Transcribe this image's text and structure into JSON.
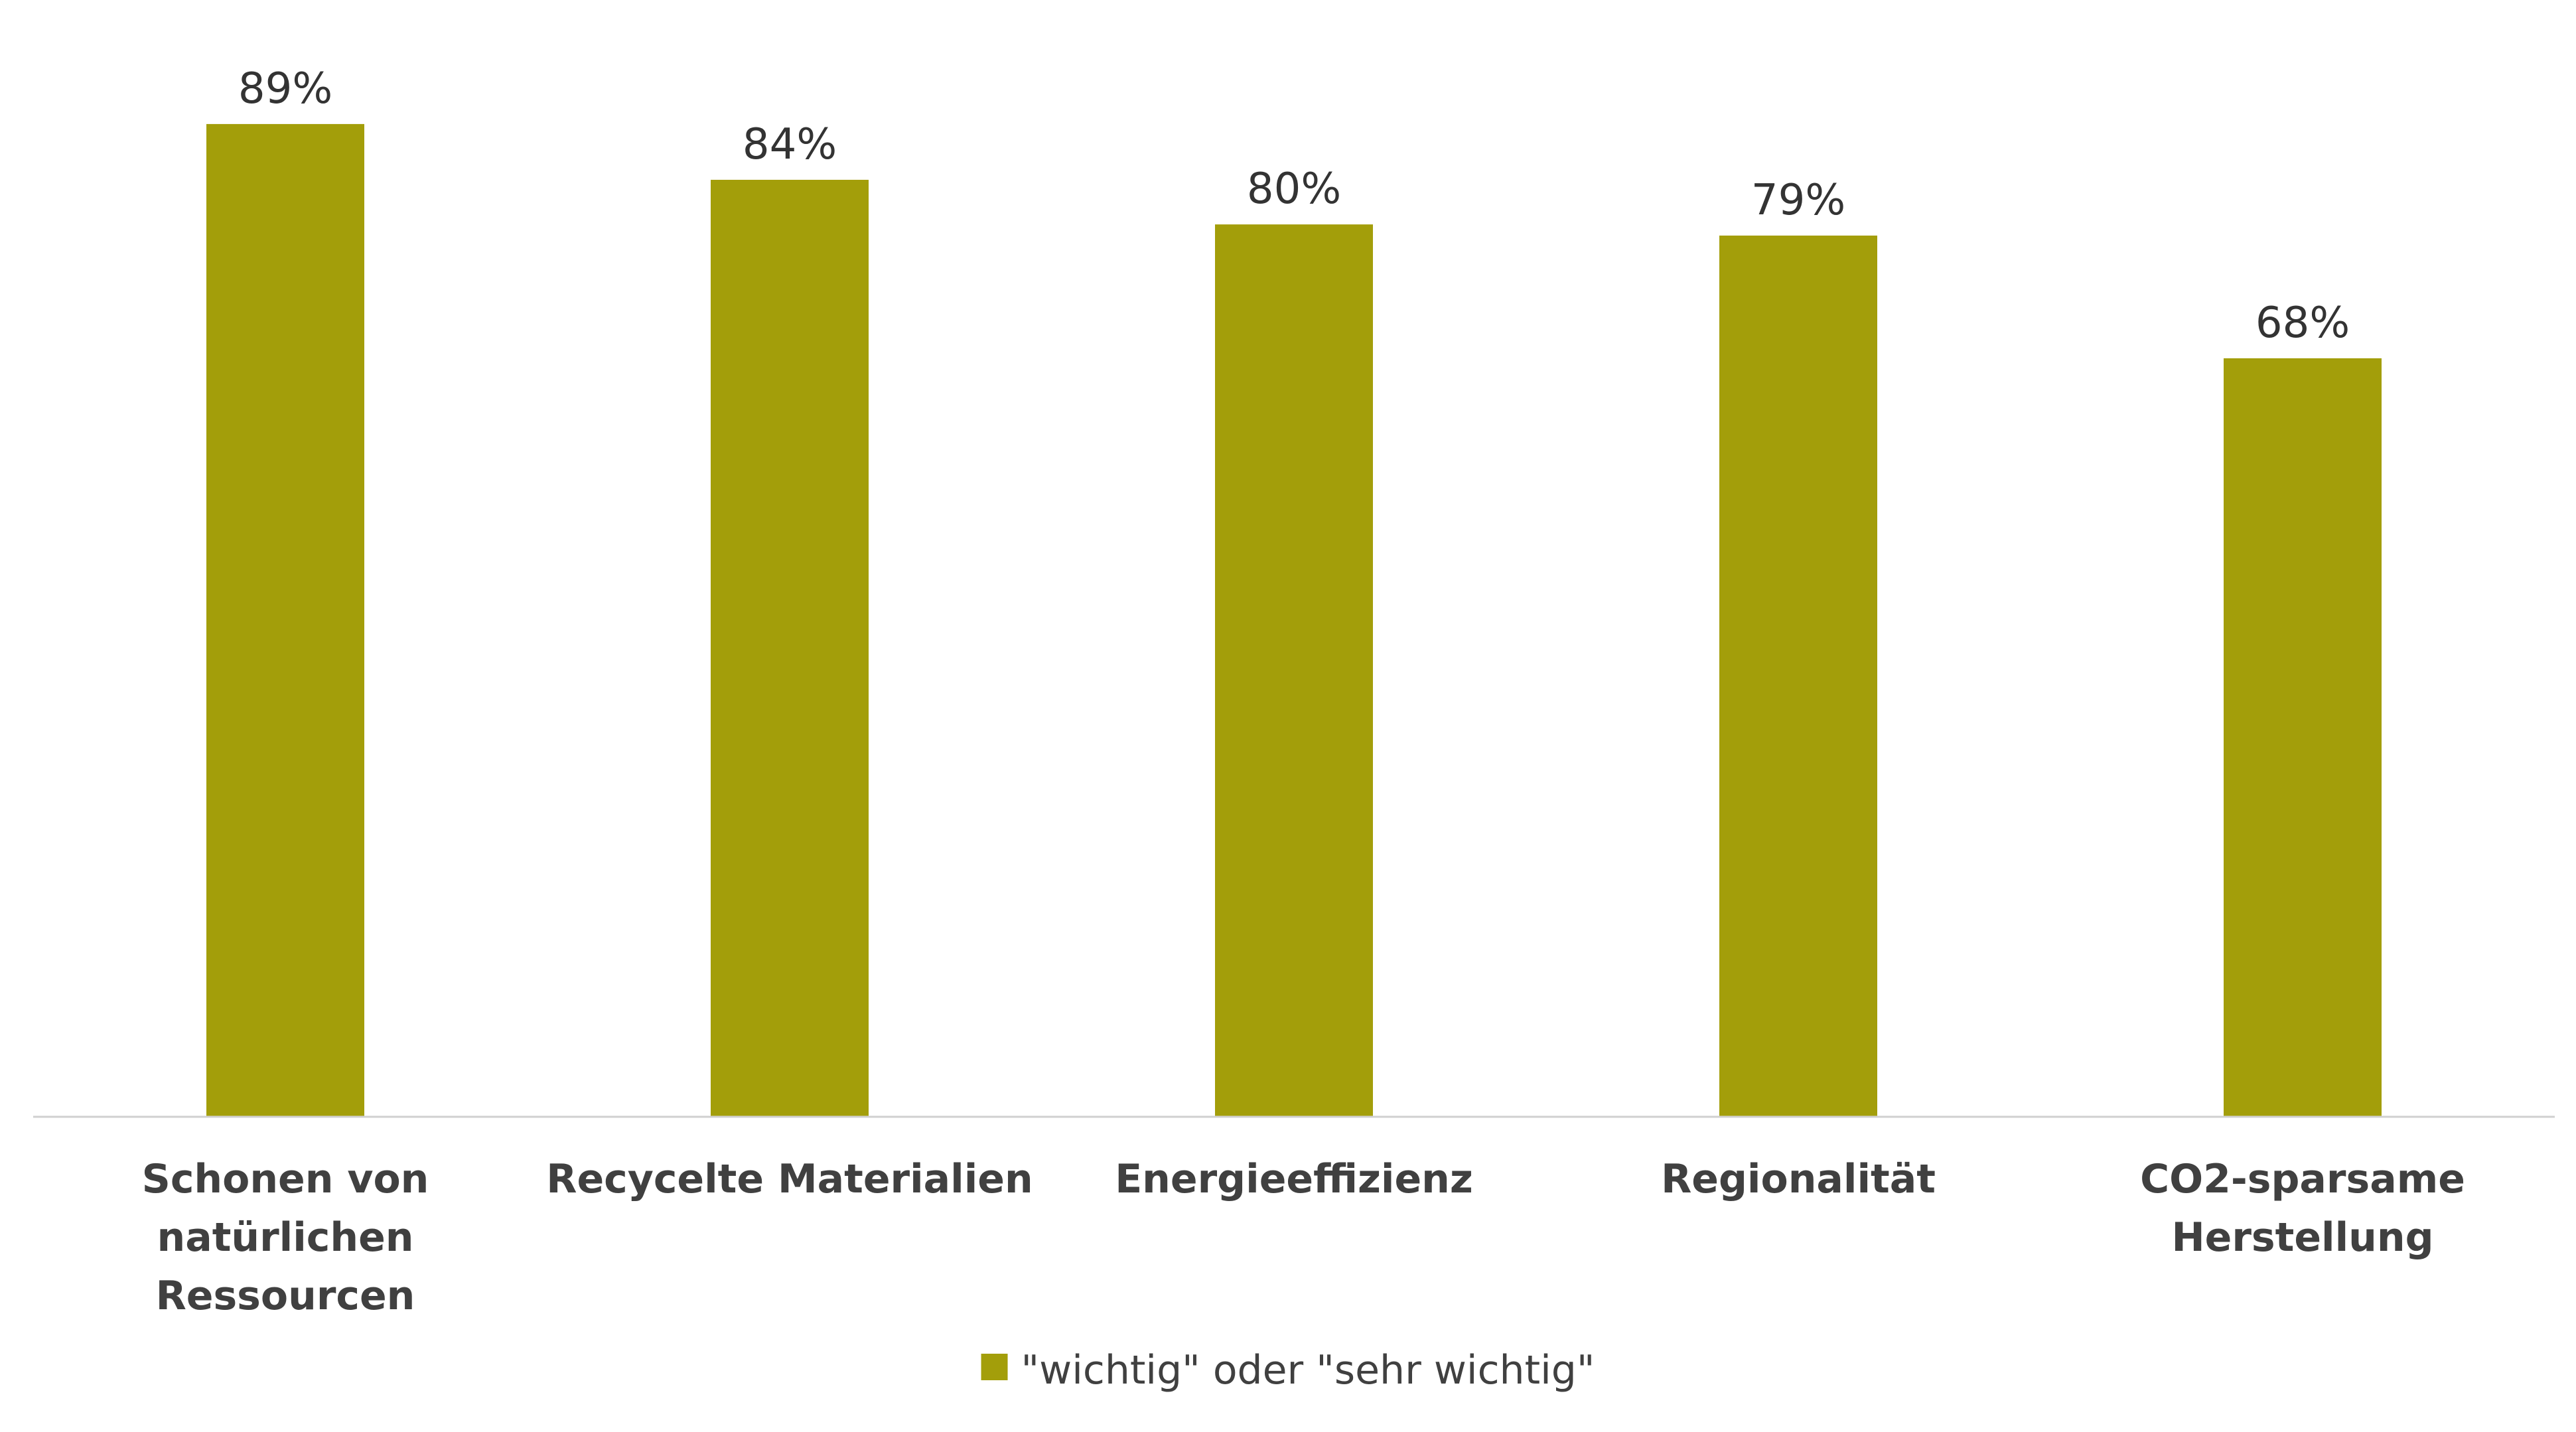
{
  "chart_data": {
    "type": "bar",
    "categories": [
      [
        "Schonen von",
        "natürlichen",
        "Ressourcen"
      ],
      [
        "Recycelte Materialien"
      ],
      [
        "Energieeffizienz"
      ],
      [
        "Regionalität"
      ],
      [
        "CO2-sparsame",
        "Herstellung"
      ]
    ],
    "series": [
      {
        "name": "\"wichtig\" oder \"sehr wichtig\"",
        "values": [
          89,
          84,
          80,
          79,
          68
        ],
        "color": "#a39e0a"
      }
    ],
    "data_labels": [
      "89%",
      "84%",
      "80%",
      "79%",
      "68%"
    ],
    "ylim": [
      0,
      100
    ],
    "grid": false,
    "legend_position": "bottom-center",
    "axis_color": "#d0d0d0"
  }
}
